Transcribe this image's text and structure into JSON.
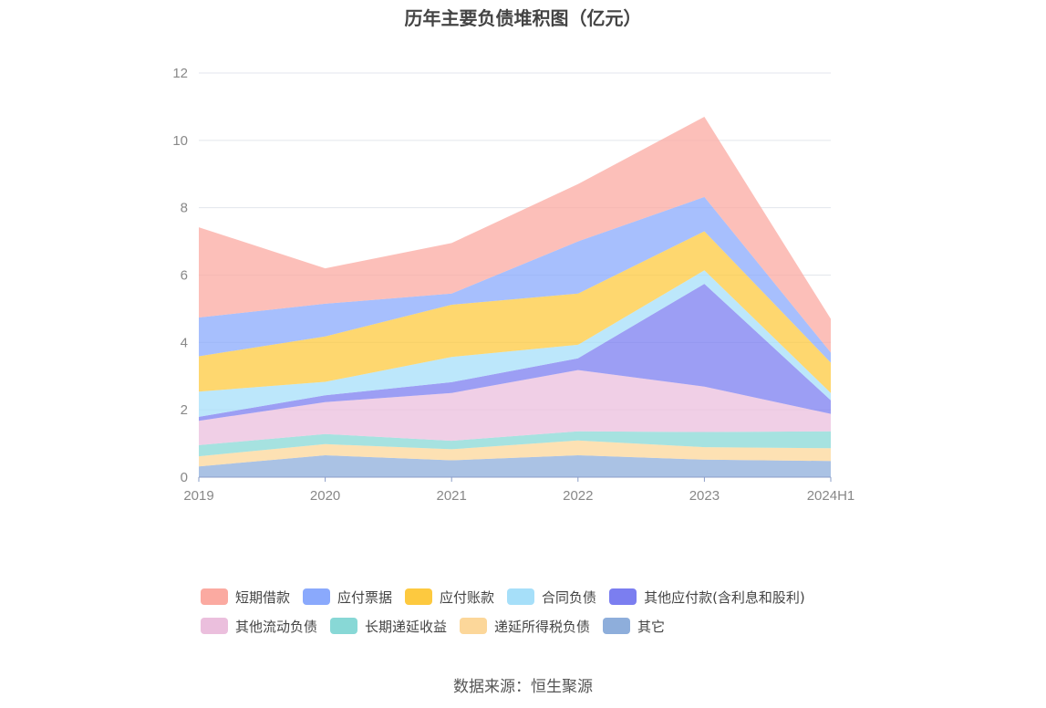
{
  "chart_data": {
    "type": "area",
    "stacked": true,
    "title": "历年主要负债堆积图（亿元）",
    "categories": [
      "2019",
      "2020",
      "2021",
      "2022",
      "2023",
      "2024H1"
    ],
    "ylim": [
      0,
      12
    ],
    "yticks": [
      0,
      2,
      4,
      6,
      8,
      10,
      12
    ],
    "grid": true,
    "legend_position": "bottom",
    "series": [
      {
        "name": "其它",
        "color": "#8eaedb",
        "values": [
          0.32,
          0.65,
          0.5,
          0.65,
          0.52,
          0.48
        ]
      },
      {
        "name": "递延所得税负债",
        "color": "#fcd79a",
        "values": [
          0.3,
          0.33,
          0.33,
          0.44,
          0.37,
          0.38
        ]
      },
      {
        "name": "长期递延收益",
        "color": "#88d8d6",
        "values": [
          0.33,
          0.3,
          0.25,
          0.27,
          0.45,
          0.5
        ]
      },
      {
        "name": "其他流动负债",
        "color": "#ebbfdd",
        "values": [
          0.72,
          0.95,
          1.42,
          1.82,
          1.35,
          0.52
        ]
      },
      {
        "name": "其他应付款(含利息和股利)",
        "color": "#7b7ef0",
        "values": [
          0.12,
          0.2,
          0.32,
          0.35,
          3.05,
          0.4
        ]
      },
      {
        "name": "合同负债",
        "color": "#a6dff9",
        "values": [
          0.75,
          0.4,
          0.75,
          0.4,
          0.4,
          0.22
        ]
      },
      {
        "name": "应付账款",
        "color": "#fdc93f",
        "values": [
          1.05,
          1.35,
          1.55,
          1.52,
          1.16,
          0.9
        ]
      },
      {
        "name": "应付票据",
        "color": "#8aa9fc",
        "values": [
          1.15,
          0.97,
          0.33,
          1.55,
          1.02,
          0.3
        ]
      },
      {
        "name": "短期借款",
        "color": "#fbaaa1",
        "values": [
          2.68,
          1.05,
          1.5,
          1.7,
          2.38,
          1.0
        ]
      }
    ],
    "legend_order": [
      "短期借款",
      "应付票据",
      "应付账款",
      "合同负债",
      "其他应付款(含利息和股利)",
      "其他流动负债",
      "长期递延收益",
      "递延所得税负债",
      "其它"
    ]
  },
  "source": "数据来源：恒生聚源"
}
